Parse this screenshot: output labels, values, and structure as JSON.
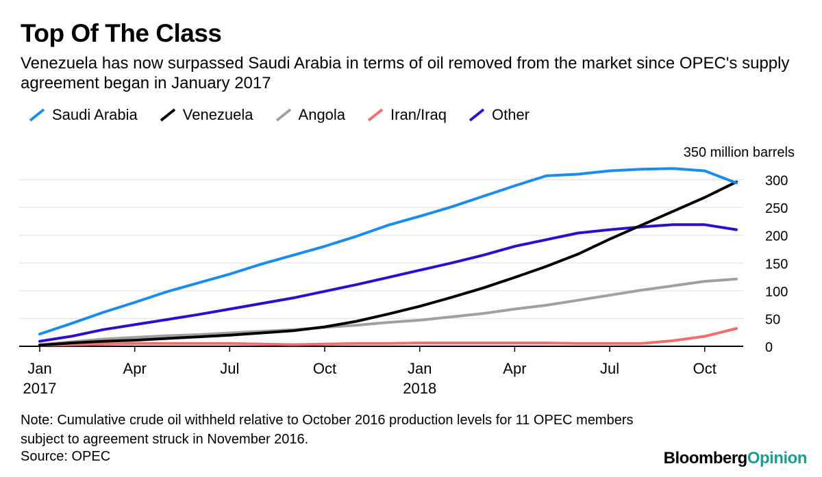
{
  "title": "Top Of The Class",
  "subtitle": "Venezuela has now surpassed Saudi Arabia in terms of oil removed from the market since OPEC's supply agreement began in January 2017",
  "note": "Note: Cumulative crude oil withheld relative to October 2016 production levels for 11 OPEC members subject to agreement struck in November 2016.",
  "source": "Source: OPEC",
  "brand": {
    "part1": "Bloomberg",
    "part2": "Opinion"
  },
  "legend": [
    {
      "name": "Saudi Arabia",
      "color": "#1a8cf0"
    },
    {
      "name": "Venezuela",
      "color": "#000000"
    },
    {
      "name": "Angola",
      "color": "#a0a0a0"
    },
    {
      "name": "Iran/Iraq",
      "color": "#f26d6d"
    },
    {
      "name": "Other",
      "color": "#2a0fd1"
    }
  ],
  "chart_data": {
    "type": "line",
    "title": "Top Of The Class",
    "ylabel": "350 million barrels",
    "ylim": [
      0,
      350
    ],
    "yticks": [
      0,
      50,
      100,
      150,
      200,
      250,
      300
    ],
    "y_top_label": "350 million barrels",
    "x": [
      "Jan 2017",
      "Feb 2017",
      "Mar 2017",
      "Apr 2017",
      "May 2017",
      "Jun 2017",
      "Jul 2017",
      "Aug 2017",
      "Sep 2017",
      "Oct 2017",
      "Nov 2017",
      "Dec 2017",
      "Jan 2018",
      "Feb 2018",
      "Mar 2018",
      "Apr 2018",
      "May 2018",
      "Jun 2018",
      "Jul 2018",
      "Aug 2018",
      "Sep 2018",
      "Oct 2018",
      "Nov 2018"
    ],
    "xticks": [
      {
        "index": 0,
        "label": "Jan",
        "sublabel": "2017"
      },
      {
        "index": 3,
        "label": "Apr",
        "sublabel": ""
      },
      {
        "index": 6,
        "label": "Jul",
        "sublabel": ""
      },
      {
        "index": 9,
        "label": "Oct",
        "sublabel": ""
      },
      {
        "index": 12,
        "label": "Jan",
        "sublabel": "2018"
      },
      {
        "index": 15,
        "label": "Apr",
        "sublabel": ""
      },
      {
        "index": 18,
        "label": "Jul",
        "sublabel": ""
      },
      {
        "index": 21,
        "label": "Oct",
        "sublabel": ""
      }
    ],
    "series": [
      {
        "name": "Angola",
        "color": "#a0a0a0",
        "values": [
          3,
          8,
          13,
          16,
          19,
          21,
          24,
          27,
          30,
          34,
          38,
          43,
          47,
          53,
          59,
          67,
          74,
          83,
          92,
          101,
          109,
          117,
          121
        ]
      },
      {
        "name": "Iran/Iraq",
        "color": "#f26d6d",
        "values": [
          2,
          3,
          4,
          5,
          5,
          5,
          5,
          4,
          3,
          4,
          5,
          5,
          6,
          6,
          6,
          6,
          6,
          5,
          5,
          5,
          10,
          18,
          32
        ]
      },
      {
        "name": "Other",
        "color": "#2a0fd1",
        "values": [
          9,
          18,
          30,
          39,
          48,
          57,
          67,
          77,
          87,
          99,
          111,
          124,
          137,
          150,
          164,
          180,
          192,
          204,
          210,
          215,
          219,
          219,
          210
        ]
      },
      {
        "name": "Venezuela",
        "color": "#000000",
        "values": [
          2,
          6,
          9,
          11,
          14,
          17,
          20,
          24,
          28,
          35,
          45,
          58,
          72,
          88,
          105,
          124,
          144,
          166,
          193,
          218,
          243,
          268,
          296
        ]
      },
      {
        "name": "Saudi Arabia",
        "color": "#1a8cf0",
        "values": [
          22,
          41,
          61,
          79,
          98,
          114,
          130,
          148,
          164,
          180,
          198,
          218,
          234,
          251,
          270,
          289,
          307,
          310,
          316,
          319,
          320,
          316,
          294
        ]
      }
    ]
  }
}
